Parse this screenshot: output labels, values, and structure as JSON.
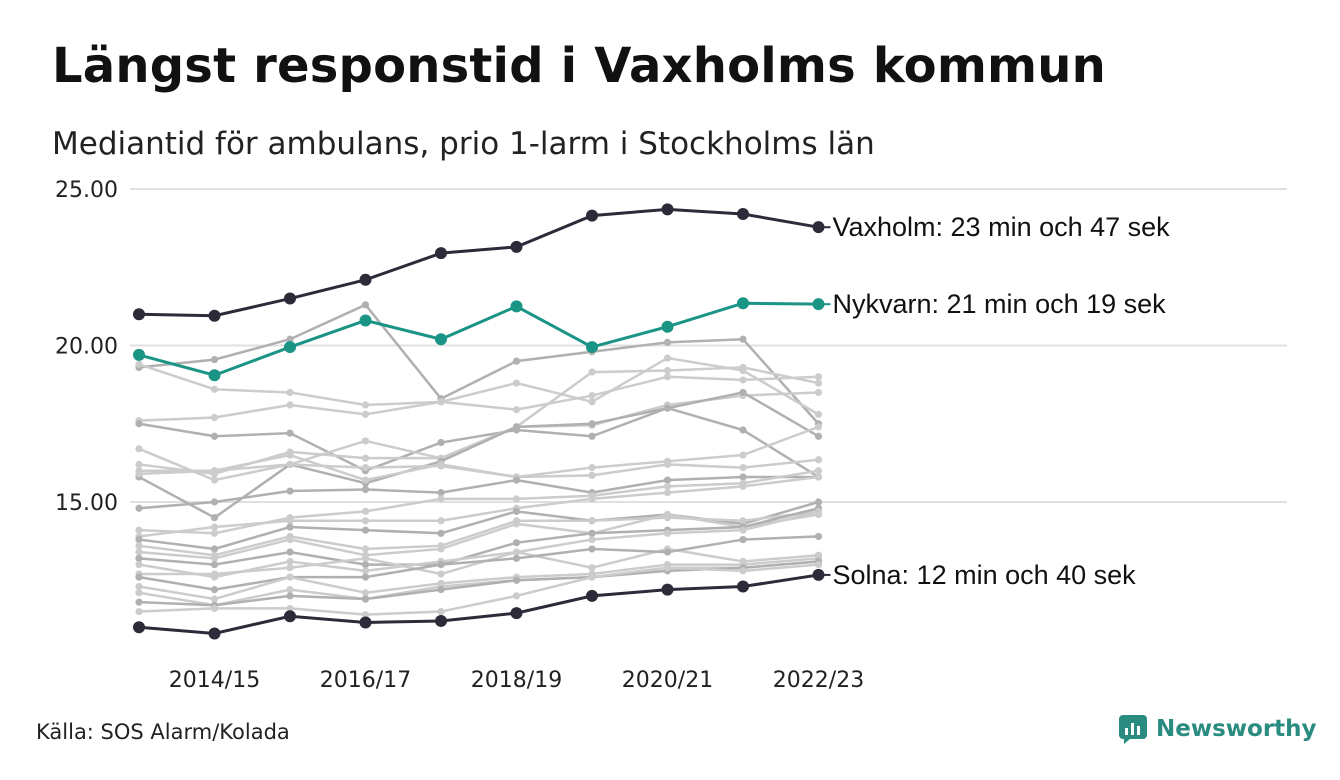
{
  "header": {
    "title": "Längst responstid i Vaxholms kommun",
    "subtitle": "Mediantid för ambulans, prio 1-larm i Stockholms län"
  },
  "footer": {
    "source": "Källa: SOS Alarm/Kolada",
    "brand": "Newsworthy"
  },
  "colors": {
    "highlight_dark": "#2b2b3a",
    "highlight_teal": "#1a9485",
    "other_light": "#cccccc",
    "other_mid": "#b0b0b0",
    "grid": "#e0e0e0",
    "brand": "#2a8c80"
  },
  "chart_data": {
    "type": "line",
    "x": [
      "2013/14",
      "2014/15",
      "2015/16",
      "2016/17",
      "2017/18",
      "2018/19",
      "2019/20",
      "2020/21",
      "2021/22",
      "2022/23"
    ],
    "x_tick_labels": [
      "2014/15",
      "2016/17",
      "2018/19",
      "2020/21",
      "2022/23"
    ],
    "y_ticks": [
      "15.00",
      "20.00",
      "25.00"
    ],
    "ylim": [
      10.5,
      25.0
    ],
    "grid": "horizontal",
    "highlighted": [
      {
        "name": "Vaxholm",
        "label": "Vaxholm: 23 min och 47 sek",
        "color": "#2b2b3a",
        "values": [
          21.0,
          20.95,
          21.5,
          22.1,
          22.95,
          23.15,
          24.15,
          24.35,
          24.2,
          23.78
        ]
      },
      {
        "name": "Nykvarn",
        "label": "Nykvarn: 21 min och 19 sek",
        "color": "#1a9485",
        "values": [
          19.7,
          19.05,
          19.95,
          20.8,
          20.2,
          21.25,
          19.95,
          20.6,
          21.35,
          21.32
        ]
      },
      {
        "name": "Solna",
        "label": "Solna: 12 min och 40 sek",
        "color": "#2b2b3a",
        "values": [
          11.0,
          10.8,
          11.35,
          11.15,
          11.2,
          11.45,
          12.0,
          12.2,
          12.3,
          12.67
        ]
      }
    ],
    "other_series": [
      {
        "values": [
          19.3,
          19.55,
          20.2,
          21.3,
          18.3,
          19.5,
          19.8,
          20.1,
          20.2,
          17.5
        ]
      },
      {
        "values": [
          19.4,
          18.6,
          18.5,
          18.1,
          18.2,
          17.95,
          18.4,
          19.0,
          18.9,
          19.0
        ]
      },
      {
        "values": [
          17.6,
          17.7,
          18.1,
          17.8,
          18.2,
          18.8,
          18.2,
          19.6,
          19.2,
          17.8
        ]
      },
      {
        "values": [
          17.5,
          17.1,
          17.2,
          16.0,
          16.9,
          17.3,
          17.1,
          18.0,
          17.3,
          15.8
        ]
      },
      {
        "values": [
          16.7,
          15.7,
          16.2,
          16.95,
          16.4,
          17.4,
          19.15,
          19.2,
          19.3,
          18.8
        ]
      },
      {
        "values": [
          16.2,
          15.9,
          16.6,
          16.4,
          16.4,
          17.4,
          17.45,
          18.1,
          18.4,
          18.5
        ]
      },
      {
        "values": [
          15.8,
          14.5,
          16.2,
          15.6,
          16.3,
          17.4,
          17.5,
          18.0,
          18.5,
          17.1
        ]
      },
      {
        "values": [
          16.0,
          16.0,
          16.2,
          16.1,
          16.15,
          15.8,
          16.1,
          16.3,
          16.5,
          17.4
        ]
      },
      {
        "values": [
          15.9,
          16.0,
          16.5,
          15.7,
          16.2,
          15.8,
          15.85,
          16.2,
          16.1,
          16.35
        ]
      },
      {
        "values": [
          14.8,
          15.0,
          15.35,
          15.4,
          15.3,
          15.7,
          15.3,
          15.7,
          15.8,
          15.8
        ]
      },
      {
        "values": [
          14.1,
          14.0,
          14.5,
          14.7,
          15.1,
          15.1,
          15.2,
          15.5,
          15.6,
          16.0
        ]
      },
      {
        "values": [
          13.9,
          14.2,
          14.4,
          14.4,
          14.4,
          14.8,
          15.1,
          15.3,
          15.5,
          15.8
        ]
      },
      {
        "values": [
          13.8,
          13.5,
          14.2,
          14.1,
          14.0,
          14.7,
          14.4,
          14.6,
          14.3,
          15.0
        ]
      },
      {
        "values": [
          13.6,
          13.3,
          13.9,
          13.5,
          13.6,
          14.4,
          14.4,
          14.5,
          14.4,
          14.7
        ]
      },
      {
        "values": [
          13.4,
          13.2,
          13.8,
          13.3,
          13.5,
          14.3,
          14.0,
          14.6,
          14.2,
          14.6
        ]
      },
      {
        "values": [
          13.2,
          13.0,
          13.4,
          13.0,
          13.0,
          13.7,
          14.0,
          14.1,
          14.2,
          14.8
        ]
      },
      {
        "values": [
          13.0,
          12.6,
          13.1,
          12.8,
          13.1,
          13.4,
          13.8,
          14.0,
          14.1,
          14.7
        ]
      },
      {
        "values": [
          12.7,
          12.7,
          12.9,
          13.2,
          12.7,
          13.4,
          12.9,
          13.5,
          13.1,
          13.3
        ]
      },
      {
        "values": [
          12.6,
          12.2,
          12.6,
          12.6,
          13.0,
          13.2,
          13.5,
          13.4,
          13.8,
          13.9
        ]
      },
      {
        "values": [
          12.3,
          11.9,
          12.6,
          12.1,
          12.4,
          12.6,
          12.7,
          13.0,
          13.0,
          13.2
        ]
      },
      {
        "values": [
          12.1,
          11.7,
          12.2,
          11.9,
          12.3,
          12.5,
          12.6,
          12.9,
          12.9,
          13.1
        ]
      },
      {
        "values": [
          11.8,
          11.7,
          12.0,
          11.9,
          12.2,
          12.5,
          12.6,
          12.8,
          12.9,
          13.1
        ]
      },
      {
        "values": [
          11.5,
          11.6,
          11.6,
          11.4,
          11.5,
          12.0,
          12.6,
          12.9,
          12.8,
          13.0
        ]
      }
    ]
  }
}
